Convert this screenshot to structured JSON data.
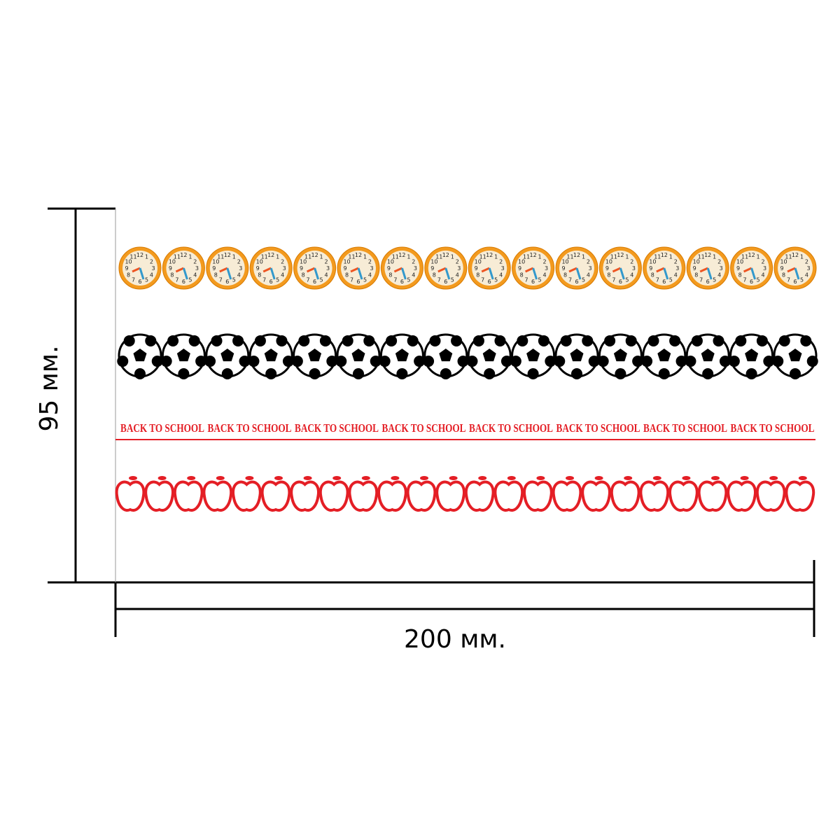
{
  "dimensions": {
    "height": "95 мм.",
    "width": "200 мм."
  },
  "banner_text": "BACK TO SCHOOL",
  "clock_numerals": [
    "12",
    "1",
    "2",
    "3",
    "4",
    "5",
    "6",
    "7",
    "8",
    "9",
    "10",
    "11"
  ]
}
